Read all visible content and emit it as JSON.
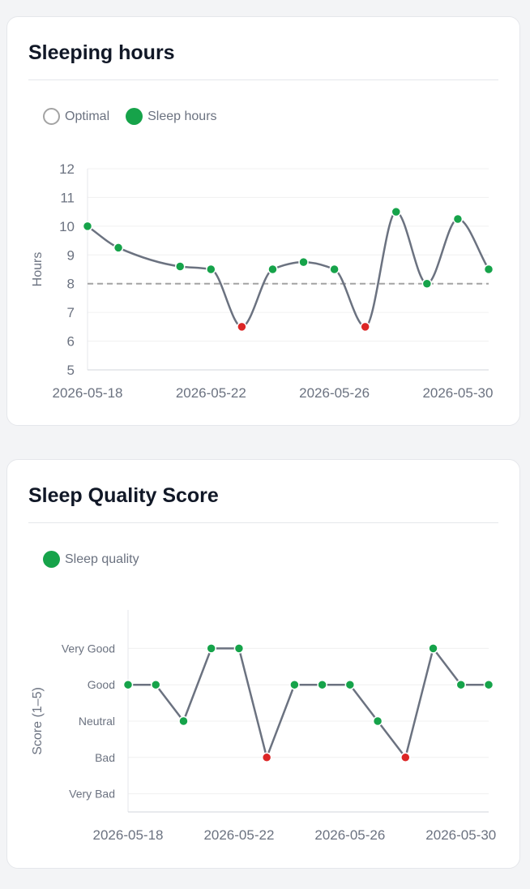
{
  "colors": {
    "line": "#6b7280",
    "good": "#16a34a",
    "bad": "#dc2626",
    "neutral": "#6b7280",
    "optimal": "#a3a3a3"
  },
  "chart_data": [
    {
      "type": "line",
      "title": "Sleeping hours",
      "legend": [
        {
          "label": "Optimal",
          "style": "outline"
        },
        {
          "label": "Sleep hours",
          "style": "filled"
        }
      ],
      "ylabel": "Hours",
      "ylim": [
        5,
        12
      ],
      "yticks": [
        5,
        6,
        7,
        8,
        9,
        10,
        11,
        12
      ],
      "xlim": [
        "2026-05-18",
        "2026-05-31"
      ],
      "xticks": [
        "2026-05-18",
        "2026-05-22",
        "2026-05-26",
        "2026-05-30"
      ],
      "optimal": 8,
      "grid": true,
      "series": [
        {
          "name": "Sleep hours",
          "points": [
            {
              "x": "2026-05-18",
              "y": 10,
              "status": "good"
            },
            {
              "x": "2026-05-19",
              "y": 9.25,
              "status": "good"
            },
            {
              "x": "2026-05-21",
              "y": 8.6,
              "status": "good"
            },
            {
              "x": "2026-05-22",
              "y": 8.5,
              "status": "good"
            },
            {
              "x": "2026-05-23",
              "y": 6.5,
              "status": "bad"
            },
            {
              "x": "2026-05-24",
              "y": 8.5,
              "status": "good"
            },
            {
              "x": "2026-05-25",
              "y": 8.75,
              "status": "good"
            },
            {
              "x": "2026-05-26",
              "y": 8.5,
              "status": "good"
            },
            {
              "x": "2026-05-27",
              "y": 6.5,
              "status": "bad"
            },
            {
              "x": "2026-05-28",
              "y": 10.5,
              "status": "good"
            },
            {
              "x": "2026-05-29",
              "y": 8,
              "status": "good"
            },
            {
              "x": "2026-05-30",
              "y": 10.25,
              "status": "good"
            },
            {
              "x": "2026-05-31",
              "y": 8.5,
              "status": "good"
            }
          ]
        }
      ]
    },
    {
      "type": "line",
      "title": "Sleep Quality Score",
      "legend": [
        {
          "label": "Sleep quality",
          "style": "filled"
        }
      ],
      "ylabel": "Score (1–5)",
      "ylim": [
        0.5,
        5.5
      ],
      "ytick_labels": [
        {
          "value": 5,
          "label": "Very Good",
          "status": "good"
        },
        {
          "value": 4,
          "label": "Good",
          "status": "good"
        },
        {
          "value": 3,
          "label": "Neutral",
          "status": "neutral"
        },
        {
          "value": 2,
          "label": "Bad",
          "status": "bad"
        },
        {
          "value": 1,
          "label": "Very Bad",
          "status": "bad"
        }
      ],
      "xlim": [
        "2026-05-18",
        "2026-05-31"
      ],
      "xticks": [
        "2026-05-18",
        "2026-05-22",
        "2026-05-26",
        "2026-05-30"
      ],
      "grid": true,
      "series": [
        {
          "name": "Sleep quality",
          "points": [
            {
              "x": "2026-05-18",
              "y": 4,
              "status": "good"
            },
            {
              "x": "2026-05-19",
              "y": 4,
              "status": "good"
            },
            {
              "x": "2026-05-20",
              "y": 3,
              "status": "good"
            },
            {
              "x": "2026-05-21",
              "y": 5,
              "status": "good"
            },
            {
              "x": "2026-05-22",
              "y": 5,
              "status": "good"
            },
            {
              "x": "2026-05-23",
              "y": 2,
              "status": "bad"
            },
            {
              "x": "2026-05-24",
              "y": 4,
              "status": "good"
            },
            {
              "x": "2026-05-25",
              "y": 4,
              "status": "good"
            },
            {
              "x": "2026-05-26",
              "y": 4,
              "status": "good"
            },
            {
              "x": "2026-05-27",
              "y": 3,
              "status": "good"
            },
            {
              "x": "2026-05-28",
              "y": 2,
              "status": "bad"
            },
            {
              "x": "2026-05-29",
              "y": 5,
              "status": "good"
            },
            {
              "x": "2026-05-30",
              "y": 4,
              "status": "good"
            },
            {
              "x": "2026-05-31",
              "y": 4,
              "status": "good"
            }
          ]
        }
      ]
    }
  ]
}
